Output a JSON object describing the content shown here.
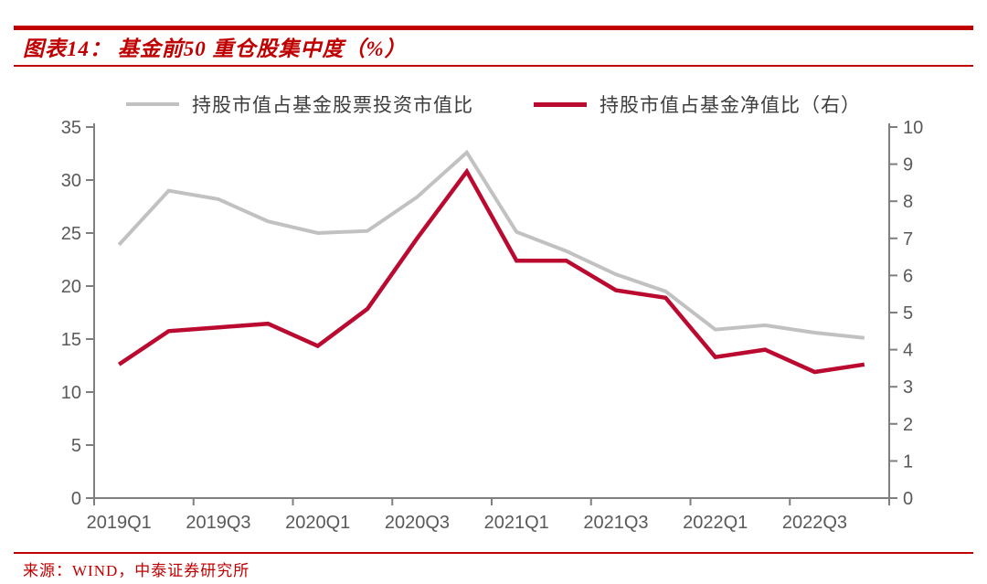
{
  "header": {
    "title": "图表14： 基金前50 重仓股集中度（%）"
  },
  "colors": {
    "brand_red": "#C00000",
    "series_gray": "#C1C1C1",
    "series_red": "#BB0A30",
    "axis_line": "#7F7F7F",
    "tick_label": "#595959"
  },
  "legend": {
    "items": [
      {
        "label": "持股市值占基金股票投资市值比",
        "color": "#C1C1C1"
      },
      {
        "label": "持股市值占基金净值比（右）",
        "color": "#BB0A30"
      }
    ]
  },
  "chart_data": {
    "type": "line",
    "title": "基金前50 重仓股集中度（%）",
    "categories": [
      "2019Q1",
      "2019Q2",
      "2019Q3",
      "2019Q4",
      "2020Q1",
      "2020Q2",
      "2020Q3",
      "2020Q4",
      "2021Q1",
      "2021Q2",
      "2021Q3",
      "2021Q4",
      "2022Q1",
      "2022Q2",
      "2022Q3",
      "2022Q4"
    ],
    "x_tick_labels": [
      "2019Q1",
      "2019Q3",
      "2020Q1",
      "2020Q3",
      "2021Q1",
      "2021Q3",
      "2022Q1",
      "2022Q3"
    ],
    "series": [
      {
        "name": "持股市值占基金股票投资市值比",
        "axis": "left",
        "color": "#C1C1C1",
        "width": 4,
        "values": [
          23.9,
          29.0,
          28.2,
          26.1,
          25.0,
          25.2,
          28.4,
          32.6,
          25.1,
          23.3,
          21.1,
          19.5,
          15.9,
          16.3,
          15.6,
          15.1
        ]
      },
      {
        "name": "持股市值占基金净值比（右）",
        "axis": "right",
        "color": "#BB0A30",
        "width": 4.5,
        "values": [
          3.6,
          4.5,
          4.6,
          4.7,
          4.1,
          5.1,
          7.0,
          8.8,
          6.4,
          6.4,
          5.6,
          5.4,
          3.8,
          4.0,
          3.4,
          3.6
        ]
      }
    ],
    "left_axis": {
      "min": 0,
      "max": 35,
      "step": 5,
      "ticks": [
        "0",
        "5",
        "10",
        "15",
        "20",
        "25",
        "30",
        "35"
      ]
    },
    "right_axis": {
      "min": 0,
      "max": 10,
      "step": 1,
      "ticks": [
        "0",
        "1",
        "2",
        "3",
        "4",
        "5",
        "6",
        "7",
        "8",
        "9",
        "10"
      ]
    },
    "grid": false,
    "legend_position": "top"
  },
  "footer": {
    "source": "来源：WIND，中泰证券研究所"
  }
}
